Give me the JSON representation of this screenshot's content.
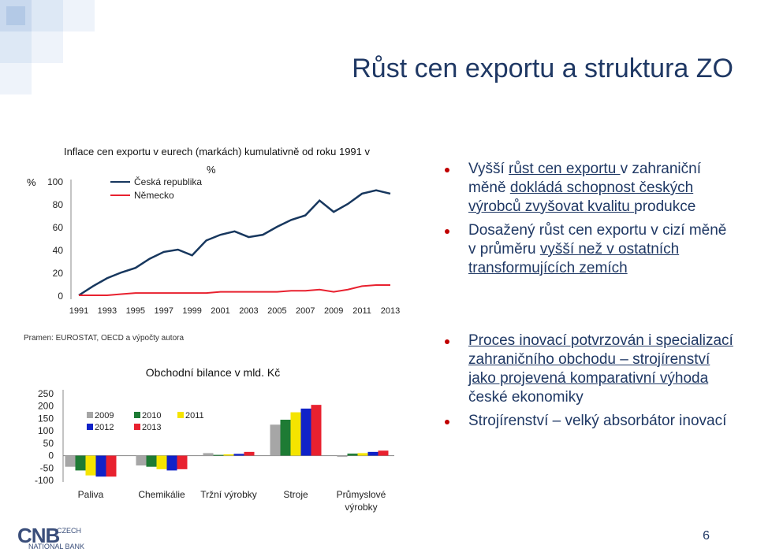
{
  "slide": {
    "title": "Růst cen exportu a struktura ZO",
    "page_number": "6",
    "source": "Pramen: EUROSTAT, OECD a výpočty autora"
  },
  "logo": {
    "mark": "CNB",
    "line1": "CZECH",
    "line2": "NATIONAL BANK"
  },
  "top_chart": {
    "title_line1": "Inflace cen exportu  v eurech (markách) kumulativně od roku 1991 v",
    "title_line2": "%",
    "y_unit": "%"
  },
  "bottom_chart": {
    "title": "Obchodní  bilance v mld.  Kč"
  },
  "chart_data": [
    {
      "type": "line",
      "x": [
        1991,
        1992,
        1993,
        1994,
        1995,
        1996,
        1997,
        1998,
        1999,
        2000,
        2001,
        2002,
        2003,
        2004,
        2005,
        2006,
        2007,
        2008,
        2009,
        2010,
        2011,
        2012,
        2013
      ],
      "x_ticks": [
        "1991",
        "1993",
        "1995",
        "1997",
        "1999",
        "2001",
        "2003",
        "2005",
        "2007",
        "2009",
        "2011",
        "2013"
      ],
      "y_ticks": [
        "0",
        "20",
        "40",
        "60",
        "80",
        "100"
      ],
      "ylim": [
        0,
        100
      ],
      "series": [
        {
          "name": "Česká republika",
          "color": "#17375e",
          "values": [
            0,
            8,
            15,
            20,
            24,
            32,
            38,
            40,
            35,
            48,
            53,
            56,
            51,
            53,
            60,
            66,
            70,
            83,
            73,
            80,
            89,
            92,
            89
          ]
        },
        {
          "name": "Německo",
          "color": "#e8212f",
          "values": [
            0,
            0,
            0,
            1,
            2,
            2,
            2,
            2,
            2,
            2,
            3,
            3,
            3,
            3,
            3,
            4,
            4,
            5,
            3,
            5,
            8,
            9,
            9
          ]
        }
      ]
    },
    {
      "type": "bar",
      "categories": [
        "Paliva",
        "Chemikálie",
        "Tržní výrobky",
        "Stroje",
        "Průmyslové výrobky"
      ],
      "y_ticks": [
        "250",
        "200",
        "150",
        "100",
        "50",
        "0",
        "-50",
        "-100"
      ],
      "ylim": [
        -100,
        250
      ],
      "series": [
        {
          "name": "2009",
          "color": "#a6a6a6",
          "values": [
            -45,
            -40,
            10,
            125,
            -5
          ]
        },
        {
          "name": "2010",
          "color": "#1e7b34",
          "values": [
            -60,
            -45,
            3,
            145,
            8
          ]
        },
        {
          "name": "2011",
          "color": "#f5e400",
          "values": [
            -80,
            -55,
            5,
            175,
            10
          ]
        },
        {
          "name": "2012",
          "color": "#1022c8",
          "values": [
            -85,
            -60,
            7,
            190,
            15
          ]
        },
        {
          "name": "2013",
          "color": "#e8212f",
          "values": [
            -85,
            -55,
            15,
            205,
            20
          ]
        }
      ]
    }
  ],
  "bullets_top": [
    {
      "segments": [
        {
          "t": "Vyšší ",
          "u": false
        },
        {
          "t": "růst cen exportu ",
          "u": true
        },
        {
          "t": "v zahraniční měně ",
          "u": false
        },
        {
          "t": "dokládá schopnost českých výrobců zvyšovat kvalitu ",
          "u": true
        },
        {
          "t": "produkce",
          "u": false
        }
      ]
    },
    {
      "segments": [
        {
          "t": "Dosažený růst cen exportu v cizí měně v průměru ",
          "u": false
        },
        {
          "t": "vyšší než v ostatních transformujících zemích",
          "u": true
        }
      ]
    }
  ],
  "bullets_bottom": [
    {
      "segments": [
        {
          "t": "Proces inovací potvrzován i specializací zahraničního obchodu – strojírenství jako projevená komparativní výhoda",
          "u": true
        },
        {
          "t": " české ekonomiky",
          "u": false
        }
      ]
    },
    {
      "segments": [
        {
          "t": "Strojírenství – velký absorbátor inovací",
          "u": false
        }
      ]
    }
  ]
}
